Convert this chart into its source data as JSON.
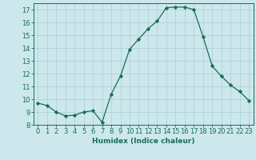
{
  "x": [
    0,
    1,
    2,
    3,
    4,
    5,
    6,
    7,
    8,
    9,
    10,
    11,
    12,
    13,
    14,
    15,
    16,
    17,
    18,
    19,
    20,
    21,
    22,
    23
  ],
  "y": [
    9.7,
    9.5,
    9.0,
    8.7,
    8.75,
    9.0,
    9.1,
    8.2,
    10.4,
    11.8,
    13.9,
    14.7,
    15.5,
    16.1,
    17.15,
    17.2,
    17.2,
    17.0,
    14.9,
    12.6,
    11.8,
    11.1,
    10.6,
    9.9
  ],
  "line_color": "#1a6b5a",
  "marker": "D",
  "marker_size": 2.2,
  "bg_color": "#cce8ec",
  "grid_color": "#aacdd4",
  "xlabel": "Humidex (Indice chaleur)",
  "xlim": [
    -0.5,
    23.5
  ],
  "ylim": [
    8,
    17.5
  ],
  "yticks": [
    8,
    9,
    10,
    11,
    12,
    13,
    14,
    15,
    16,
    17
  ],
  "xticks": [
    0,
    1,
    2,
    3,
    4,
    5,
    6,
    7,
    8,
    9,
    10,
    11,
    12,
    13,
    14,
    15,
    16,
    17,
    18,
    19,
    20,
    21,
    22,
    23
  ],
  "label_fontsize": 6.5,
  "tick_fontsize": 6.0
}
